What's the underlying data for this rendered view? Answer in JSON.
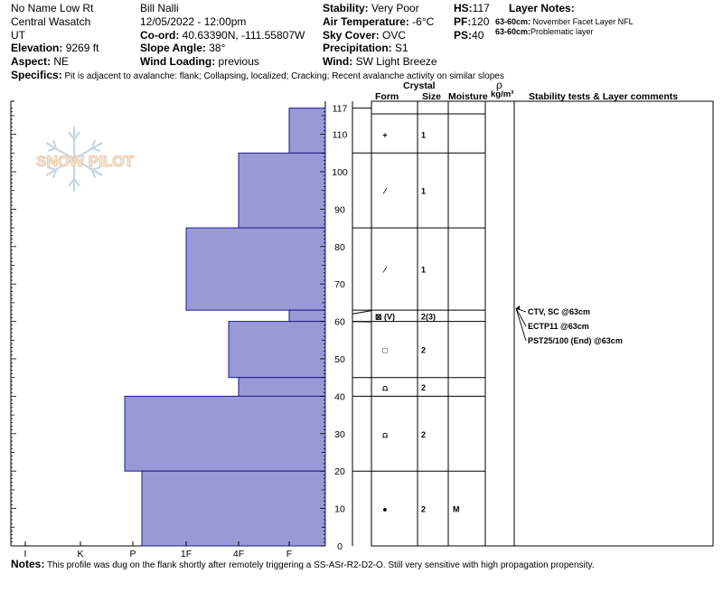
{
  "header": {
    "route": "No Name Low Rt",
    "range": "Central Wasatch",
    "state": "UT",
    "elevation_label": "Elevation:",
    "elevation": "9269 ft",
    "aspect_label": "Aspect:",
    "aspect": "NE",
    "observer": "Bill Nalli",
    "datetime": "12/05/2022 - 12:00pm",
    "coord_label": "Co-ord:",
    "coord": "40.63390N, -111.55807W",
    "slope_label": "Slope Angle:",
    "slope": "38°",
    "wind_loading_label": "Wind Loading:",
    "wind_loading": "previous",
    "stability_label": "Stability:",
    "stability": "Very Poor",
    "air_temp_label": "Air Temperature:",
    "air_temp": "-6°C",
    "sky_label": "Sky Cover:",
    "sky": "OVC",
    "precip_label": "Precipitation:",
    "precip": "S1",
    "wind_label": "Wind:",
    "wind": "SW Light Breeze",
    "hs_label": "HS:",
    "hs": "117",
    "pf_label": "PF:",
    "pf": "120",
    "ps_label": "PS:",
    "ps": "40",
    "layer_notes_label": "Layer Notes:",
    "layer_notes": [
      {
        "range": "63-60cm:",
        "text": "November Facet Layer NFL"
      },
      {
        "range": "63-60cm:",
        "text": "Problematic layer"
      }
    ],
    "specifics_label": "Specifics:",
    "specifics": "Pit is adjacent to avalanche: flank; Collapsing, localized; Cracking; Recent avalanche activity on similar slopes"
  },
  "watermark": "SNOW PILOT",
  "columns": {
    "crystal": "Crystal",
    "form": "Form",
    "size": "Size",
    "moisture": "Moisture",
    "rho": "ρ",
    "density_unit": "kg/m³",
    "stability": "Stability tests & Layer comments"
  },
  "notes_label": "Notes:",
  "notes": "This profile was dug on the flank shortly after remotely triggering a SS-ASr-R2-D2-O. Still very sensitive with high propagation propensity.",
  "chart_data": {
    "type": "bar",
    "hardness_axis": [
      "I",
      "K",
      "P",
      "1F",
      "4F",
      "F"
    ],
    "height_ticks": [
      0,
      10,
      20,
      30,
      40,
      50,
      60,
      70,
      80,
      90,
      100,
      110,
      117
    ],
    "height_range": [
      0,
      117
    ],
    "hardness_profile": [
      {
        "bottom": 105,
        "top": 117,
        "hardness": "F"
      },
      {
        "bottom": 85,
        "top": 105,
        "hardness": "4F"
      },
      {
        "bottom": 63,
        "top": 85,
        "hardness": "1F"
      },
      {
        "bottom": 60,
        "top": 63,
        "hardness": "F"
      },
      {
        "bottom": 45,
        "top": 60,
        "hardness": "4F-"
      },
      {
        "bottom": 40,
        "top": 45,
        "hardness": "4F"
      },
      {
        "bottom": 20,
        "top": 40,
        "hardness": "P-"
      },
      {
        "bottom": 0,
        "top": 20,
        "hardness": "P+"
      }
    ],
    "layer_boundaries": [
      105,
      85,
      63,
      60,
      45,
      40,
      20
    ],
    "layers": [
      {
        "mid": 110,
        "form": "+",
        "size": "1",
        "moisture": ""
      },
      {
        "mid": 95,
        "form": "⁄",
        "size": "1",
        "moisture": ""
      },
      {
        "mid": 74,
        "form": "⁄",
        "size": "1",
        "moisture": ""
      },
      {
        "mid": 61.5,
        "form": "⊠ (V)",
        "size": "2(3)",
        "moisture": ""
      },
      {
        "mid": 52.5,
        "form": "□",
        "size": "2",
        "moisture": ""
      },
      {
        "mid": 42.5,
        "form": "⩍",
        "size": "2",
        "moisture": ""
      },
      {
        "mid": 30,
        "form": "⩍",
        "size": "2",
        "moisture": ""
      },
      {
        "mid": 10,
        "form": "●",
        "size": "2",
        "moisture": "M"
      }
    ],
    "stability_tests": [
      {
        "height": 63,
        "text": "CTV, SC @63cm"
      },
      {
        "height": 63,
        "text": "ECTP11 @63cm"
      },
      {
        "height": 63,
        "text": "PST25/100 (End) @63cm"
      }
    ]
  }
}
